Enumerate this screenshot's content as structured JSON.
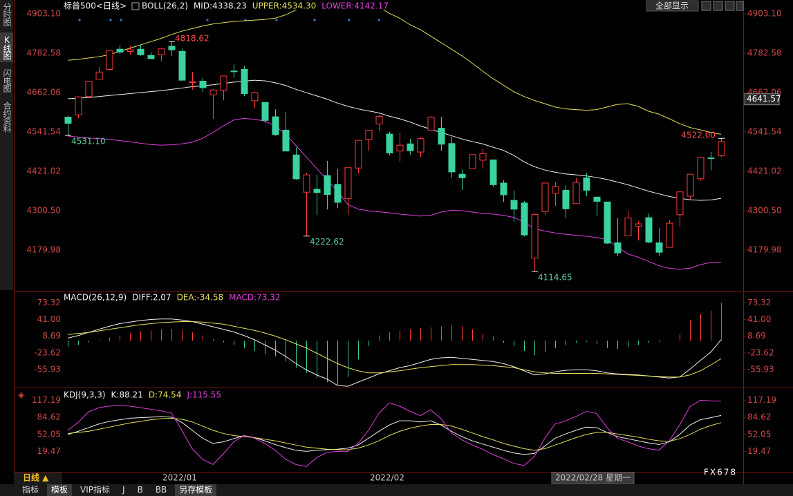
{
  "chart_data": [
    {
      "type": "candlestick",
      "title": "标普500<日线>",
      "indicator": "BOLL(26,2)",
      "categories": [
        null,
        null,
        null,
        null,
        null,
        null,
        null,
        null,
        null,
        "2022/01",
        null,
        null,
        null,
        null,
        null,
        null,
        null,
        null,
        null,
        null,
        null,
        null,
        null,
        null,
        null,
        null,
        null,
        null,
        null,
        "2022/02",
        null,
        null,
        null,
        null,
        null,
        null,
        null,
        null,
        null,
        null,
        null,
        null,
        null,
        null,
        null,
        null,
        null,
        "2022/02/28 星期一",
        null,
        null,
        null,
        null,
        null,
        null,
        null,
        null,
        null,
        null,
        null,
        null,
        null,
        null,
        null,
        null
      ],
      "cursor_index": 47,
      "open": [
        4587,
        4594,
        4650,
        4703,
        4733,
        4795,
        4788,
        4795,
        4776,
        4778,
        4804,
        4788,
        4693,
        4697,
        4655,
        4669,
        4728,
        4733,
        4637,
        4632,
        4588,
        4547,
        4471,
        4357,
        4366,
        4408,
        4381,
        4337,
        4431,
        4519,
        4566,
        4535,
        4483,
        4505,
        4480,
        4547,
        4553,
        4506,
        4412,
        4429,
        4455,
        4456,
        4385,
        4332,
        4324,
        4155,
        4298,
        4354,
        4363,
        4322,
        4401,
        4342,
        4327,
        4202,
        4223,
        4253,
        4279,
        4202,
        4188,
        4288,
        4345,
        4398,
        4462,
        4469
      ],
      "high": [
        4591,
        4651,
        4697,
        4740,
        4791,
        4807,
        4805,
        4808,
        4786,
        4796,
        4818.62,
        4797,
        4725,
        4707,
        4673,
        4714,
        4749,
        4744,
        4665,
        4632,
        4611,
        4602,
        4494,
        4417,
        4411,
        4453,
        4428,
        4432,
        4516,
        4547,
        4595,
        4542,
        4540,
        4521,
        4526,
        4590,
        4588,
        4527,
        4427,
        4472,
        4490,
        4456,
        4394,
        4362,
        4330,
        4294,
        4385,
        4388,
        4378,
        4401,
        4416,
        4343,
        4327,
        4277,
        4299,
        4268,
        4291,
        4247,
        4272,
        4358,
        4412,
        4465,
        4481,
        4522
      ],
      "low": [
        4531.1,
        4583,
        4645,
        4703,
        4733,
        4780,
        4778,
        4775,
        4765,
        4758,
        4774,
        4700,
        4671,
        4663,
        4582,
        4638,
        4708,
        4651,
        4614,
        4568,
        4530,
        4483,
        4395,
        4222.62,
        4287,
        4304,
        4309,
        4287,
        4415,
        4484,
        4544,
        4470,
        4451,
        4471,
        4465,
        4547,
        4484,
        4401,
        4364,
        4429,
        4429,
        4373,
        4327,
        4267,
        4221,
        4114.65,
        4287,
        4315,
        4279,
        4322,
        4345,
        4284,
        4199,
        4161,
        4223,
        4209,
        4200,
        4162,
        4187,
        4252,
        4335,
        4392,
        4424,
        4465
      ],
      "close": [
        4568,
        4649,
        4697,
        4725,
        4791,
        4786,
        4793,
        4778,
        4766,
        4796,
        4793,
        4700,
        4696,
        4677,
        4670,
        4713,
        4726,
        4659,
        4662,
        4577,
        4533,
        4483,
        4398,
        4410,
        4356,
        4350,
        4326,
        4432,
        4516,
        4547,
        4589,
        4477,
        4501,
        4484,
        4521,
        4587,
        4504,
        4419,
        4401,
        4472,
        4475,
        4380,
        4349,
        4305,
        4226,
        4289,
        4385,
        4374,
        4306,
        4387,
        4363,
        4329,
        4201,
        4171,
        4278,
        4260,
        4204,
        4173,
        4262,
        4358,
        4412,
        4463,
        4461,
        4512
      ],
      "up_color": "#ff3b3b",
      "down_color": "#3ad2a0",
      "overlays": [
        {
          "name": "MID:4338.23",
          "color": "#f0f0f0",
          "values": [
            4643,
            4645,
            4647,
            4650,
            4653,
            4656,
            4659,
            4662,
            4665,
            4668,
            4672,
            4676,
            4680,
            4683,
            4686,
            4690,
            4694,
            4697,
            4700,
            4698,
            4692,
            4684,
            4672,
            4662,
            4652,
            4642,
            4630,
            4620,
            4612,
            4606,
            4600,
            4590,
            4582,
            4572,
            4560,
            4550,
            4540,
            4530,
            4520,
            4512,
            4505,
            4495,
            4485,
            4470,
            4450,
            4435,
            4425,
            4418,
            4413,
            4410,
            4407,
            4402,
            4396,
            4388,
            4380,
            4370,
            4360,
            4352,
            4344,
            4338,
            4334,
            4332,
            4333,
            4338.23
          ]
        },
        {
          "name": "UPPER:4534.30",
          "color": "#e6e05a",
          "values": [
            4761,
            4764,
            4768,
            4772,
            4778,
            4788,
            4798,
            4808,
            4818,
            4828,
            4840,
            4850,
            4858,
            4866,
            4872,
            4876,
            4880,
            4882,
            4884,
            4886,
            4890,
            4900,
            4915,
            4930,
            4942,
            4950,
            4955,
            4955,
            4950,
            4940,
            4925,
            4905,
            4890,
            4870,
            4855,
            4835,
            4815,
            4795,
            4775,
            4752,
            4728,
            4705,
            4685,
            4665,
            4650,
            4638,
            4628,
            4618,
            4612,
            4610,
            4608,
            4610,
            4618,
            4626,
            4628,
            4620,
            4605,
            4596,
            4582,
            4567,
            4555,
            4548,
            4540,
            4534.3
          ]
        },
        {
          "name": "LOWER:4142.17",
          "color": "#e040e0",
          "values": [
            4529,
            4526,
            4523,
            4521,
            4519,
            4515,
            4511,
            4507,
            4503,
            4501,
            4502,
            4505,
            4510,
            4522,
            4540,
            4560,
            4578,
            4583,
            4580,
            4575,
            4560,
            4535,
            4500,
            4465,
            4430,
            4395,
            4360,
            4320,
            4305,
            4300,
            4297,
            4294,
            4290,
            4287,
            4284,
            4286,
            4296,
            4302,
            4300,
            4296,
            4292,
            4290,
            4286,
            4280,
            4265,
            4245,
            4238,
            4232,
            4228,
            4225,
            4222,
            4218,
            4212,
            4190,
            4168,
            4158,
            4145,
            4132,
            4124,
            4121,
            4124,
            4135,
            4142,
            4142.17
          ]
        }
      ],
      "annotations": [
        {
          "label": "4818.62",
          "index": 10,
          "at": "high",
          "color": "#ff4d4d"
        },
        {
          "label": "4531.10",
          "index": 0,
          "at": "low",
          "color": "#5ad2a0"
        },
        {
          "label": "4222.62",
          "index": 23,
          "at": "low",
          "color": "#5ad2a0"
        },
        {
          "label": "4114.65",
          "index": 45,
          "at": "low",
          "color": "#5ad2a0"
        },
        {
          "label": "4522.00",
          "index": 63,
          "at": "high",
          "color": "#ff4d4d"
        }
      ],
      "cursor_value": {
        "value": 4641.57,
        "label": "4641.57"
      },
      "ylim": [
        4057,
        4916
      ],
      "yticks": [
        {
          "value": 4903.1,
          "label": "4903.10"
        },
        4782.58,
        4662.06,
        4541.54,
        4421.02,
        {
          "value": 4300.5,
          "label": "4300.50"
        },
        4179.98
      ]
    },
    {
      "type": "macd",
      "indicator": "MACD(26,12,9)",
      "series": [
        {
          "name": "DIFF:2.07",
          "color": "#f0f0f0",
          "values": [
            5,
            10,
            16,
            22,
            28,
            33,
            36,
            39,
            41,
            42,
            42,
            40,
            37,
            32,
            27,
            22,
            17,
            10,
            2,
            -8,
            -18,
            -30,
            -44,
            -56,
            -66,
            -74,
            -86,
            -88,
            -80,
            -72,
            -64,
            -58,
            -52,
            -48,
            -42,
            -36,
            -33,
            -32,
            -34,
            -36,
            -38,
            -40,
            -44,
            -50,
            -58,
            -66,
            -64,
            -60,
            -57,
            -56,
            -56,
            -58,
            -62,
            -64,
            -65,
            -66,
            -68,
            -70,
            -72,
            -70,
            -55,
            -38,
            -22,
            2.07
          ]
        },
        {
          "name": "DEA:-34.58",
          "color": "#e6e05a",
          "values": [
            12,
            14,
            16,
            19,
            22,
            25,
            28,
            31,
            33,
            35,
            36,
            37,
            37,
            36,
            34,
            32,
            28,
            24,
            20,
            15,
            9,
            2,
            -6,
            -14,
            -24,
            -34,
            -44,
            -52,
            -58,
            -62,
            -62,
            -60,
            -58,
            -55,
            -52,
            -50,
            -48,
            -46,
            -46,
            -46,
            -47,
            -48,
            -50,
            -52,
            -56,
            -60,
            -62,
            -63,
            -63,
            -63,
            -63,
            -63,
            -64,
            -65,
            -66,
            -67,
            -68,
            -69,
            -70,
            -70,
            -66,
            -58,
            -47,
            -34.58
          ]
        }
      ],
      "bars": {
        "name": "MACD:73.32",
        "color": "#e040e0",
        "up_color": "#ff3b3b",
        "down_color": "#3ad2a0",
        "values": [
          -12,
          -8,
          -3,
          2,
          6,
          10,
          14,
          18,
          20,
          22,
          23,
          20,
          16,
          10,
          4,
          -3,
          -8,
          -14,
          -20,
          -26,
          -30,
          -40,
          -52,
          -62,
          -72,
          -80,
          -85,
          -70,
          -36,
          -10,
          10,
          16,
          20,
          22,
          24,
          26,
          28,
          30,
          28,
          22,
          14,
          8,
          -4,
          -10,
          -20,
          -28,
          -22,
          -14,
          -8,
          -4,
          -2,
          -6,
          -14,
          -16,
          -12,
          -8,
          -4,
          -2,
          0,
          13,
          40,
          51,
          58,
          73.32
        ]
      },
      "ylim": [
        -89,
        95
      ],
      "yticks": [
        73.32,
        {
          "value": 41,
          "label": "41.00"
        },
        8.69,
        -23.62,
        -55.93
      ]
    },
    {
      "type": "kdj",
      "indicator": "KDJ(9,3,3)",
      "series": [
        {
          "name": "K:88.21",
          "color": "#f0f0f0",
          "values": [
            52,
            58,
            65,
            72,
            77,
            80,
            83,
            84,
            85,
            86,
            85,
            75,
            60,
            45,
            35,
            38,
            44,
            50,
            46,
            40,
            33,
            27,
            22,
            20,
            22,
            23,
            24,
            26,
            32,
            45,
            58,
            70,
            78,
            78,
            76,
            78,
            70,
            58,
            48,
            40,
            34,
            28,
            22,
            17,
            14,
            16,
            30,
            45,
            53,
            60,
            66,
            65,
            56,
            48,
            44,
            40,
            36,
            33,
            38,
            52,
            70,
            80,
            84,
            88.21
          ]
        },
        {
          "name": "D:74.54",
          "color": "#e6e05a",
          "values": [
            54,
            56,
            58,
            62,
            66,
            70,
            74,
            77,
            80,
            82,
            83,
            81,
            76,
            68,
            60,
            54,
            50,
            48,
            46,
            43,
            40,
            36,
            32,
            28,
            26,
            24,
            23,
            23,
            26,
            32,
            40,
            50,
            58,
            64,
            68,
            71,
            71,
            68,
            62,
            55,
            48,
            42,
            35,
            30,
            25,
            22,
            25,
            32,
            39,
            46,
            52,
            56,
            56,
            53,
            50,
            47,
            43,
            40,
            39,
            44,
            52,
            62,
            69,
            74.54
          ]
        },
        {
          "name": "J:115.55",
          "color": "#e040e0",
          "values": [
            60,
            75,
            95,
            103,
            106,
            107,
            106,
            103,
            100,
            97,
            93,
            60,
            25,
            5,
            -5,
            15,
            38,
            50,
            45,
            35,
            22,
            5,
            -5,
            -9,
            8,
            18,
            20,
            20,
            35,
            60,
            92,
            112,
            106,
            96,
            88,
            99,
            82,
            55,
            42,
            32,
            24,
            14,
            6,
            -3,
            -7,
            10,
            45,
            72,
            78,
            86,
            96,
            92,
            65,
            45,
            38,
            30,
            25,
            22,
            40,
            70,
            105,
            117,
            116,
            115.55
          ]
        }
      ],
      "ylim": [
        -19,
        140
      ],
      "yticks": [
        117.19,
        84.62,
        52.05,
        19.47
      ]
    }
  ],
  "ui": {
    "side_tabs": [
      "分时图",
      "K线图",
      "闪电图",
      "合约资料"
    ],
    "period": "日线 ▲",
    "top_button": "全部显示",
    "toolbar": [
      "指标",
      "模板",
      "VIP指标",
      "J",
      "B",
      "BB",
      "另存模板"
    ],
    "watermark": "FX678"
  }
}
